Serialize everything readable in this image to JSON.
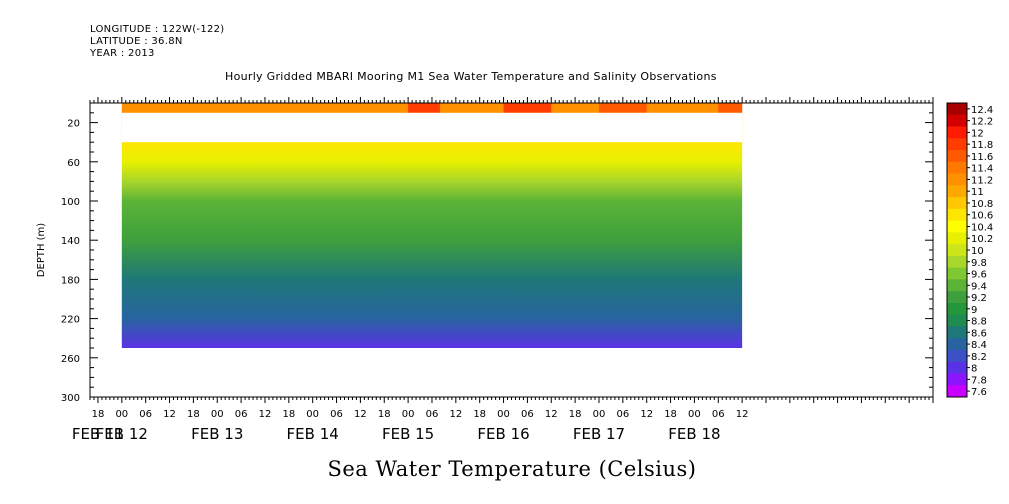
{
  "header": {
    "longitude": "LONGITUDE : 122W(-122)",
    "latitude": "LATITUDE : 36.8N",
    "year": "YEAR : 2013"
  },
  "chart_data": {
    "type": "heatmap",
    "title": "Hourly Gridded MBARI Mooring M1 Sea Water Temperature and Salinity Observations",
    "subtitle": "Sea Water Temperature (Celsius)",
    "xlabel": "",
    "ylabel": "DEPTH (m)",
    "ylim": [
      0,
      300
    ],
    "y_reversed": true,
    "y_ticks": [
      20,
      60,
      100,
      140,
      180,
      220,
      260,
      300
    ],
    "x_range_hours": [
      -8,
      204
    ],
    "x_hour_labels": [
      "18",
      "00",
      "06",
      "12",
      "18",
      "00",
      "06",
      "12",
      "18",
      "00",
      "06",
      "12",
      "18",
      "00",
      "06",
      "12",
      "18",
      "00",
      "06",
      "12",
      "18",
      "00",
      "06",
      "12",
      "18",
      "00",
      "06",
      "12"
    ],
    "x_date_labels": [
      "FEB 11",
      "FEB 12",
      "FEB 13",
      "FEB 14",
      "FEB 15",
      "FEB 16",
      "FEB 17",
      "FEB 18"
    ],
    "x_date_label_hours": [
      -6,
      0,
      24,
      48,
      72,
      96,
      120,
      144
    ],
    "data_start": "FEB 11 00",
    "data_end": "FEB 18 12",
    "gap_depth_range": [
      10,
      40
    ],
    "max_depth_with_data": 250,
    "colorbar": {
      "labels": [
        "12.4",
        "12.2",
        "12",
        "11.8",
        "11.6",
        "11.4",
        "11.2",
        "11",
        "10.8",
        "10.6",
        "10.4",
        "10.2",
        "10",
        "9.8",
        "9.6",
        "9.4",
        "9.2",
        "9",
        "8.8",
        "8.6",
        "8.4",
        "8.2",
        "8",
        "7.8",
        "7.6"
      ],
      "colors": [
        "#a80000",
        "#d40000",
        "#ff1a00",
        "#ff3d00",
        "#ff5a00",
        "#ff7800",
        "#ff9000",
        "#ffa800",
        "#ffc800",
        "#ffe600",
        "#ffff00",
        "#e6f000",
        "#cce61a",
        "#a8d62a",
        "#80c832",
        "#5cb436",
        "#3ea03c",
        "#24963c",
        "#1e8c50",
        "#1e7878",
        "#2864a0",
        "#3c50c8",
        "#5a32e6",
        "#8c14ff",
        "#c800ff"
      ]
    },
    "depth_profile": [
      {
        "depth": 5,
        "temperature": 11.2
      },
      {
        "depth": 40,
        "temperature": 10.6
      },
      {
        "depth": 60,
        "temperature": 10.2
      },
      {
        "depth": 80,
        "temperature": 9.8
      },
      {
        "depth": 100,
        "temperature": 9.4
      },
      {
        "depth": 140,
        "temperature": 9.1
      },
      {
        "depth": 180,
        "temperature": 8.7
      },
      {
        "depth": 220,
        "temperature": 8.3
      },
      {
        "depth": 250,
        "temperature": 8.0
      }
    ]
  }
}
